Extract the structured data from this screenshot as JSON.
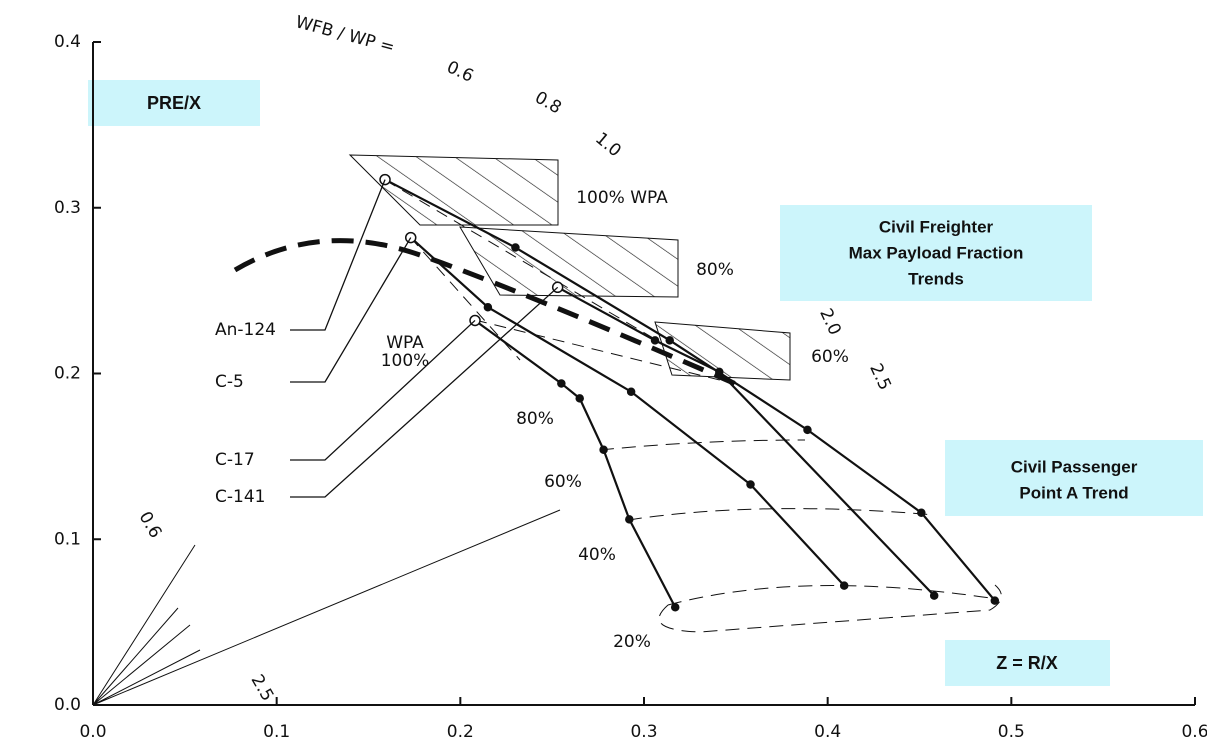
{
  "chart_data": {
    "type": "line",
    "x_label": "Z = R/X",
    "y_label": "PRE/X",
    "xlim": [
      0,
      0.6
    ],
    "ylim": [
      0,
      0.4
    ],
    "xticks": [
      {
        "value": 0,
        "label": "0.0"
      },
      0.1,
      0.2,
      0.3,
      0.4,
      0.5,
      0.6
    ],
    "yticks": [
      {
        "value": 0,
        "label": "0.0"
      },
      0.1,
      0.2,
      0.3,
      0.4
    ],
    "series": [
      {
        "name": "An-124",
        "color": "#111111",
        "x": [
          0.159,
          0.23,
          0.314,
          0.389,
          0.451,
          0.491
        ],
        "values": [
          0.317,
          0.276,
          0.22,
          0.166,
          0.116,
          0.063
        ]
      },
      {
        "name": "C-5",
        "color": "#111111",
        "x": [
          0.173,
          0.215,
          0.293,
          0.358,
          0.409
        ],
        "values": [
          0.282,
          0.24,
          0.189,
          0.133,
          0.072
        ]
      },
      {
        "name": "C-17",
        "color": "#111111",
        "x": [
          0.208,
          0.255,
          0.265,
          0.278,
          0.292,
          0.317
        ],
        "values": [
          0.232,
          0.194,
          0.185,
          0.154,
          0.112,
          0.059
        ]
      },
      {
        "name": "C-141",
        "color": "#111111",
        "x": [
          0.253,
          0.306,
          0.341,
          0.458
        ],
        "values": [
          0.252,
          0.22,
          0.201,
          0.066
        ]
      }
    ],
    "notes": [
      [
        "Civil Freighter",
        "Max Payload Fraction",
        "Trends"
      ],
      [
        "Civil Passenger",
        "Point A Trend"
      ]
    ],
    "annotations": [
      "WFB / WP =",
      "0.6",
      "0.8",
      "1.0",
      "100% WPA",
      "80%",
      "60%",
      "2.0",
      "2.5",
      "WPA",
      "100%",
      "80%",
      "60%",
      "40%",
      "20%",
      "0.6",
      "2.5"
    ]
  }
}
